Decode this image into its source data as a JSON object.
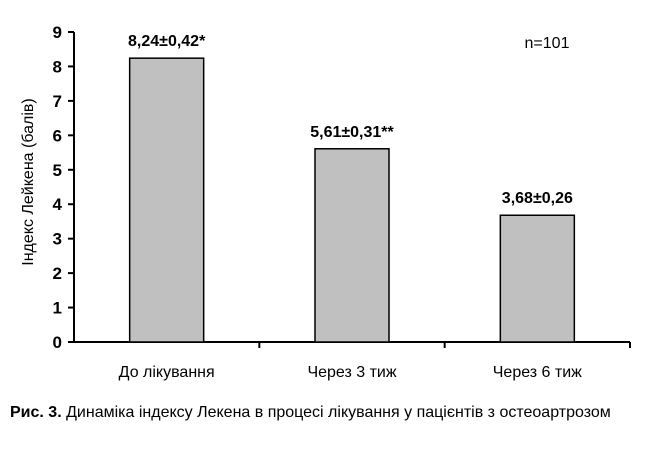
{
  "chart_data": {
    "type": "bar",
    "categories": [
      "До лікування",
      "Через 3 тиж",
      "Через 6 тиж"
    ],
    "values": [
      8.24,
      5.61,
      3.68
    ],
    "data_labels": [
      "8,24±0,42*",
      "5,61±0,31**",
      "3,68±0,26"
    ],
    "title": "",
    "xlabel": "",
    "ylabel": "Індекс Лейкена (балів)",
    "ylim": [
      0,
      9
    ],
    "yticks": [
      "0",
      "1",
      "2",
      "3",
      "4",
      "5",
      "6",
      "7",
      "8",
      "9"
    ],
    "annotation": "n=101",
    "grid": false,
    "bar_color": "#c0c0c0"
  },
  "caption": {
    "prefix": "Рис. 3.",
    "text": "Динаміка індексу Лекена в процесі лікування у пацієнтів з остеоартрозом"
  }
}
